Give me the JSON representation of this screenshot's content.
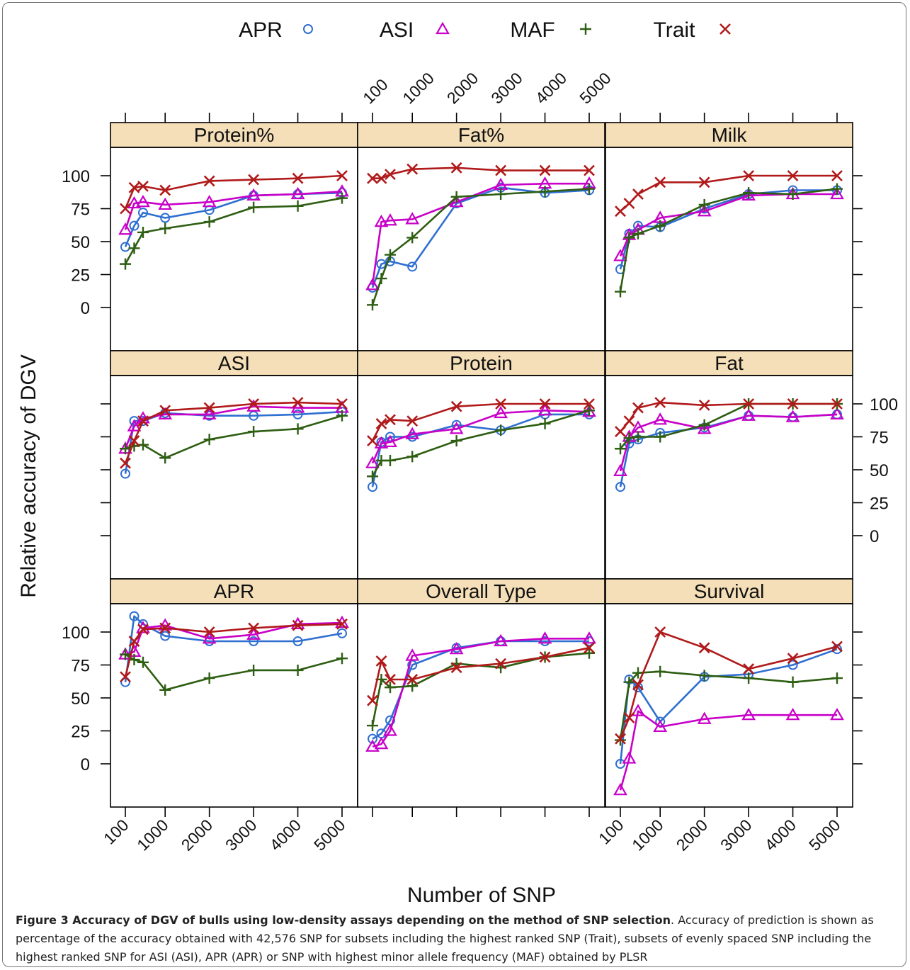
{
  "legend": [
    {
      "name": "APR",
      "symbol": "circle-icon",
      "color": "#2f6fd1"
    },
    {
      "name": "ASI",
      "symbol": "triangle-icon",
      "color": "#c800c8"
    },
    {
      "name": "MAF",
      "symbol": "plus-icon",
      "color": "#2e5e12"
    },
    {
      "name": "Trait",
      "symbol": "x-icon",
      "color": "#b01a1a"
    }
  ],
  "ylabel": "Relative accuracy of DGV",
  "xlabel": "Number of SNP",
  "caption": {
    "bold": "Figure 3 Accuracy of DGV of bulls using low-density assays depending on the method of SNP selection",
    "text": ". Accuracy of prediction is shown as percentage of the accuracy obtained with 42,576 SNP for subsets including the highest ranked SNP (Trait), subsets of evenly spaced SNP including the highest ranked SNP for ASI (ASI), APR (APR) or SNP with highest minor allele frequency (MAF) obtained by PLSR"
  },
  "chart_data": {
    "type": "line",
    "layout": "lattice 3x3",
    "grid": false,
    "legend_position": "top",
    "x": [
      100,
      300,
      500,
      1000,
      2000,
      3000,
      4000,
      5000
    ],
    "x_ticks": [
      100,
      1000,
      2000,
      3000,
      4000,
      5000
    ],
    "x_tick_labels": [
      "100",
      "1000",
      "2000",
      "3000",
      "4000",
      "5000"
    ],
    "y_ticks": [
      0,
      25,
      50,
      75,
      100
    ],
    "y_tick_labels": [
      "0",
      "25",
      "50",
      "75",
      "100"
    ],
    "ylim": [
      -20,
      120
    ],
    "xlim": [
      -150,
      5250
    ],
    "panels": [
      {
        "title": "Protein%",
        "series": {
          "APR": [
            46,
            62,
            72,
            68,
            74,
            85,
            86,
            87
          ],
          "ASI": [
            59,
            79,
            80,
            78,
            80,
            85,
            86,
            88
          ],
          "MAF": [
            33,
            45,
            57,
            60,
            65,
            76,
            77,
            83
          ],
          "Trait": [
            75,
            91,
            92,
            89,
            96,
            97,
            98,
            100
          ]
        }
      },
      {
        "title": "Fat%",
        "series": {
          "APR": [
            15,
            33,
            35,
            31,
            79,
            91,
            87,
            89
          ],
          "ASI": [
            17,
            65,
            66,
            67,
            80,
            93,
            94,
            94
          ],
          "MAF": [
            2,
            22,
            40,
            53,
            84,
            86,
            88,
            90
          ],
          "Trait": [
            98,
            98,
            101,
            105,
            106,
            104,
            104,
            104
          ]
        }
      },
      {
        "title": "Milk",
        "series": {
          "APR": [
            29,
            56,
            62,
            61,
            75,
            86,
            89,
            89
          ],
          "ASI": [
            39,
            55,
            59,
            68,
            73,
            85,
            86,
            86
          ],
          "MAF": [
            12,
            53,
            56,
            62,
            78,
            87,
            86,
            90
          ],
          "Trait": [
            73,
            79,
            86,
            95,
            95,
            100,
            100,
            100
          ]
        }
      },
      {
        "title": "ASI",
        "series": {
          "APR": [
            47,
            87,
            87,
            93,
            91,
            91,
            92,
            94
          ],
          "ASI": [
            66,
            83,
            89,
            92,
            92,
            98,
            97,
            97
          ],
          "MAF": [
            66,
            68,
            69,
            59,
            73,
            79,
            81,
            91
          ],
          "Trait": [
            55,
            72,
            87,
            95,
            97,
            100,
            101,
            100
          ]
        }
      },
      {
        "title": "Protein",
        "series": {
          "APR": [
            37,
            71,
            75,
            75,
            84,
            80,
            92,
            92
          ],
          "ASI": [
            55,
            70,
            71,
            77,
            81,
            93,
            95,
            94
          ],
          "MAF": [
            45,
            57,
            57,
            60,
            72,
            80,
            85,
            95
          ],
          "Trait": [
            72,
            85,
            88,
            87,
            98,
            100,
            100,
            100
          ]
        }
      },
      {
        "title": "Fat",
        "series": {
          "APR": [
            37,
            70,
            73,
            78,
            82,
            91,
            90,
            92
          ],
          "ASI": [
            49,
            75,
            82,
            88,
            81,
            91,
            90,
            92
          ],
          "MAF": [
            66,
            74,
            75,
            75,
            84,
            100,
            100,
            100
          ],
          "Trait": [
            79,
            87,
            97,
            101,
            99,
            100,
            100,
            100
          ]
        }
      },
      {
        "title": "APR",
        "series": {
          "APR": [
            62,
            112,
            106,
            97,
            93,
            93,
            93,
            99
          ],
          "ASI": [
            83,
            85,
            103,
            105,
            95,
            98,
            106,
            107
          ],
          "MAF": [
            83,
            79,
            77,
            56,
            65,
            71,
            71,
            80
          ],
          "Trait": [
            66,
            93,
            102,
            103,
            100,
            103,
            105,
            106
          ]
        }
      },
      {
        "title": "Overall Type",
        "series": {
          "APR": [
            19,
            23,
            33,
            75,
            88,
            93,
            93,
            93
          ],
          "ASI": [
            13,
            15,
            25,
            82,
            87,
            93,
            95,
            95
          ],
          "MAF": [
            29,
            64,
            58,
            59,
            76,
            73,
            81,
            84
          ],
          "Trait": [
            48,
            78,
            64,
            64,
            73,
            76,
            81,
            88
          ]
        }
      },
      {
        "title": "Survival",
        "series": {
          "APR": [
            0,
            64,
            58,
            32,
            66,
            68,
            75,
            87
          ],
          "ASI": [
            -20,
            4,
            40,
            28,
            34,
            37,
            37,
            37
          ],
          "MAF": [
            18,
            62,
            69,
            70,
            67,
            65,
            62,
            65
          ],
          "Trait": [
            19,
            35,
            60,
            100,
            88,
            72,
            80,
            89
          ]
        }
      }
    ]
  }
}
